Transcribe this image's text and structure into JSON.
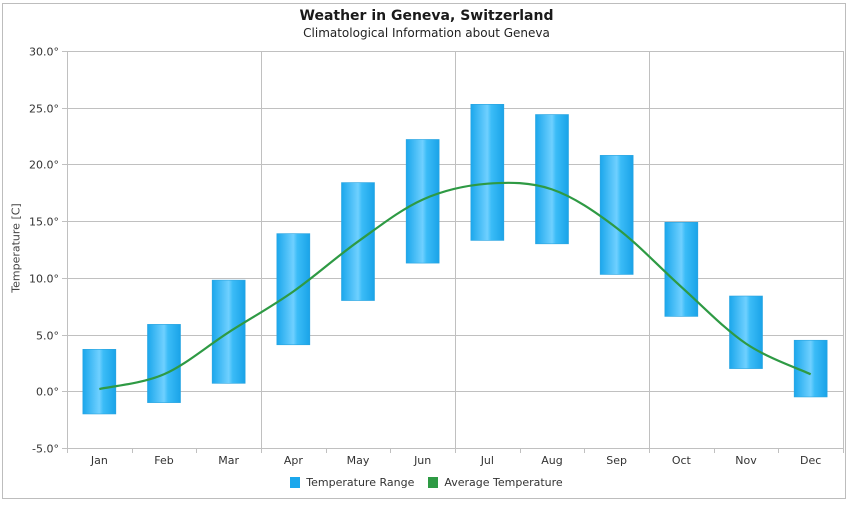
{
  "chart_data": {
    "type": "bar",
    "title": "Weather in Geneva, Switzerland",
    "subtitle": "Climatological Information about Geneva",
    "xlabel": "",
    "ylabel": "Temperature [C]",
    "ylim": [
      -5,
      30
    ],
    "yticks": [
      30,
      25,
      20,
      15,
      10,
      5,
      0,
      -5
    ],
    "ytick_labels": [
      "30.0°",
      "25.0°",
      "20.0°",
      "15.0°",
      "10.0°",
      "5.0°",
      "0.0°",
      "-5.0°"
    ],
    "grid": true,
    "legend_position": "bottom",
    "categories": [
      "Jan",
      "Feb",
      "Mar",
      "Apr",
      "May",
      "Jun",
      "Jul",
      "Aug",
      "Sep",
      "Oct",
      "Nov",
      "Dec"
    ],
    "series": [
      {
        "name": "Temperature Range",
        "type": "range-bar",
        "color": "#1ba7ec",
        "low": [
          -2.0,
          -1.0,
          0.7,
          4.1,
          8.0,
          11.3,
          13.3,
          13.0,
          10.3,
          6.6,
          2.0,
          -0.5
        ],
        "high": [
          3.7,
          5.9,
          9.8,
          13.9,
          18.4,
          22.2,
          25.3,
          24.4,
          20.8,
          14.9,
          8.4,
          4.5
        ]
      },
      {
        "name": "Average Temperature",
        "type": "spline",
        "color": "#2e9a44",
        "values": [
          0.2,
          1.5,
          5.2,
          8.8,
          13.2,
          16.9,
          18.3,
          17.8,
          14.4,
          9.2,
          4.2,
          1.5
        ]
      }
    ]
  }
}
